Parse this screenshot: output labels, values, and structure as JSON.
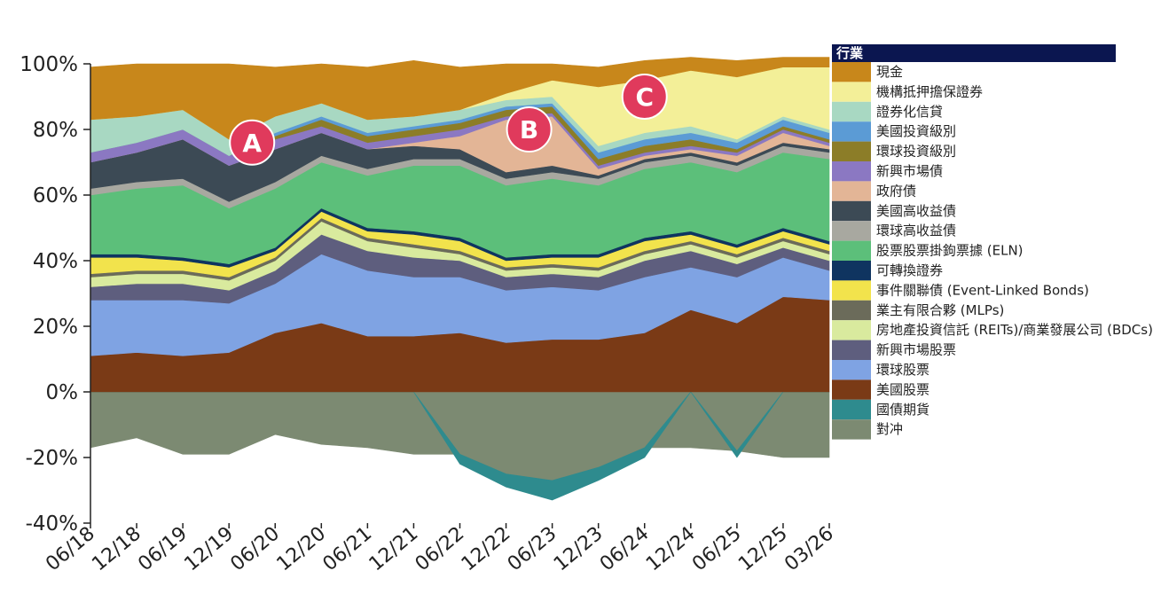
{
  "chart_data": {
    "type": "area",
    "stacked": true,
    "x": [
      "06/18",
      "12/18",
      "06/19",
      "12/19",
      "06/20",
      "12/20",
      "06/21",
      "12/21",
      "06/22",
      "12/22",
      "06/23",
      "12/23",
      "06/24",
      "12/24",
      "06/25",
      "12/25",
      "03/26"
    ],
    "x_tick_labels": [
      "06/18",
      "12/18",
      "06/19",
      "12/19",
      "06/20",
      "12/20",
      "06/21",
      "12/21",
      "06/22",
      "12/22",
      "06/23",
      "12/23",
      "06/24",
      "12/24",
      "06/25",
      "12/25",
      "03/26"
    ],
    "ylim": [
      -40,
      100
    ],
    "y_ticks": [
      -40,
      -20,
      0,
      20,
      40,
      60,
      80,
      100
    ],
    "y_tick_labels": [
      "-40%",
      "-20%",
      "0%",
      "20%",
      "40%",
      "60%",
      "80%",
      "100%"
    ],
    "legend_title": "行業",
    "legend_position": "right",
    "series": [
      {
        "name": "對冲",
        "color": "#7c8a72",
        "values": [
          -17,
          -14,
          -19,
          -19,
          -13,
          -16,
          -17,
          -19,
          -19,
          -25,
          -27,
          -23,
          -17,
          -17,
          -18,
          -20,
          -20
        ]
      },
      {
        "name": "國債期貨",
        "color": "#2e8b8e",
        "values": [
          0,
          0,
          0,
          0,
          0,
          0,
          0,
          0,
          -3,
          -4,
          -6,
          -4,
          -3,
          0,
          -2,
          0,
          0
        ]
      },
      {
        "name": "美國股票",
        "color": "#7a3a16",
        "values": [
          11,
          12,
          11,
          12,
          18,
          21,
          17,
          17,
          18,
          15,
          16,
          16,
          18,
          25,
          21,
          29,
          28
        ]
      },
      {
        "name": "環球股票",
        "color": "#7fa3e3",
        "values": [
          17,
          16,
          17,
          15,
          15,
          21,
          20,
          18,
          17,
          16,
          16,
          15,
          17,
          13,
          14,
          12,
          9
        ]
      },
      {
        "name": "新興市場股票",
        "color": "#5e5e7e",
        "values": [
          4,
          5,
          5,
          4,
          4,
          6,
          6,
          6,
          5,
          4,
          4,
          4,
          5,
          5,
          4,
          3,
          3
        ]
      },
      {
        "name": "房地產投資信託 (REITs)/商業發展公司 (BDCs)",
        "color": "#d9ea9e",
        "values": [
          3,
          3,
          3,
          3,
          3,
          4,
          3,
          3,
          2,
          2,
          2,
          2,
          2,
          2,
          2,
          2,
          2
        ]
      },
      {
        "name": "業主有限合夥 (MLPs)",
        "color": "#6b6b5a",
        "values": [
          1,
          1,
          1,
          1,
          1,
          1,
          1,
          1,
          1,
          1,
          1,
          1,
          1,
          1,
          1,
          1,
          1
        ]
      },
      {
        "name": "事件關聯債 (Event-Linked Bonds)",
        "color": "#f2e34c",
        "values": [
          5,
          4,
          3,
          3,
          2,
          2,
          2,
          3,
          3,
          2,
          2,
          3,
          3,
          2,
          2,
          2,
          2
        ]
      },
      {
        "name": "可轉換證券",
        "color": "#0f3460",
        "values": [
          1,
          1,
          1,
          1,
          1,
          1,
          1,
          1,
          1,
          1,
          1,
          1,
          1,
          1,
          1,
          1,
          1
        ]
      },
      {
        "name": "股票股票掛鉤票據 (ELN)",
        "color": "#5cbf7a",
        "values": [
          18,
          20,
          22,
          17,
          18,
          14,
          16,
          20,
          22,
          22,
          23,
          21,
          21,
          21,
          22,
          23,
          25
        ]
      },
      {
        "name": "環球高收益債",
        "color": "#a8a8a0",
        "values": [
          2,
          2,
          2,
          2,
          2,
          2,
          2,
          2,
          2,
          2,
          2,
          2,
          2,
          2,
          2,
          2,
          2
        ]
      },
      {
        "name": "美國高收益債",
        "color": "#3c4a55",
        "values": [
          8,
          9,
          12,
          11,
          10,
          7,
          6,
          4,
          3,
          2,
          2,
          1,
          1,
          1,
          1,
          1,
          1
        ]
      },
      {
        "name": "政府債",
        "color": "#e3b596",
        "values": [
          0,
          0,
          0,
          0,
          0,
          0,
          0,
          1,
          4,
          16,
          15,
          2,
          1,
          1,
          2,
          3,
          1
        ]
      },
      {
        "name": "新興市場債",
        "color": "#8b78c2",
        "values": [
          3,
          3,
          3,
          3,
          3,
          2,
          2,
          2,
          2,
          1,
          1,
          1,
          1,
          1,
          1,
          1,
          1
        ]
      },
      {
        "name": "環球投資級別",
        "color": "#8c7d28",
        "values": [
          0,
          0,
          0,
          0,
          1,
          2,
          2,
          2,
          2,
          2,
          2,
          2,
          2,
          2,
          1,
          1,
          1
        ]
      },
      {
        "name": "美國投資級別",
        "color": "#5b9bd5",
        "values": [
          0,
          0,
          0,
          0,
          1,
          1,
          1,
          1,
          1,
          1,
          1,
          2,
          2,
          2,
          2,
          2,
          2
        ]
      },
      {
        "name": "證券化信貸",
        "color": "#a8d8c2",
        "values": [
          10,
          8,
          6,
          5,
          5,
          4,
          4,
          3,
          3,
          2,
          2,
          2,
          2,
          2,
          1,
          1,
          1
        ]
      },
      {
        "name": "機構抵押擔保證券",
        "color": "#f3ef98",
        "values": [
          0,
          0,
          0,
          0,
          0,
          0,
          0,
          0,
          0,
          2,
          5,
          18,
          16,
          17,
          19,
          15,
          19
        ]
      },
      {
        "name": "現金",
        "color": "#c8871b",
        "values": [
          16,
          16,
          14,
          23,
          15,
          12,
          16,
          17,
          13,
          9,
          5,
          6,
          6,
          4,
          5,
          3,
          3
        ]
      }
    ],
    "annotations": [
      {
        "label": "A",
        "x": "03/20",
        "y": 76
      },
      {
        "label": "B",
        "x": "03/23",
        "y": 80
      },
      {
        "label": "C",
        "x": "06/24",
        "y": 90
      }
    ],
    "annotation_color": "#e03a5c"
  }
}
